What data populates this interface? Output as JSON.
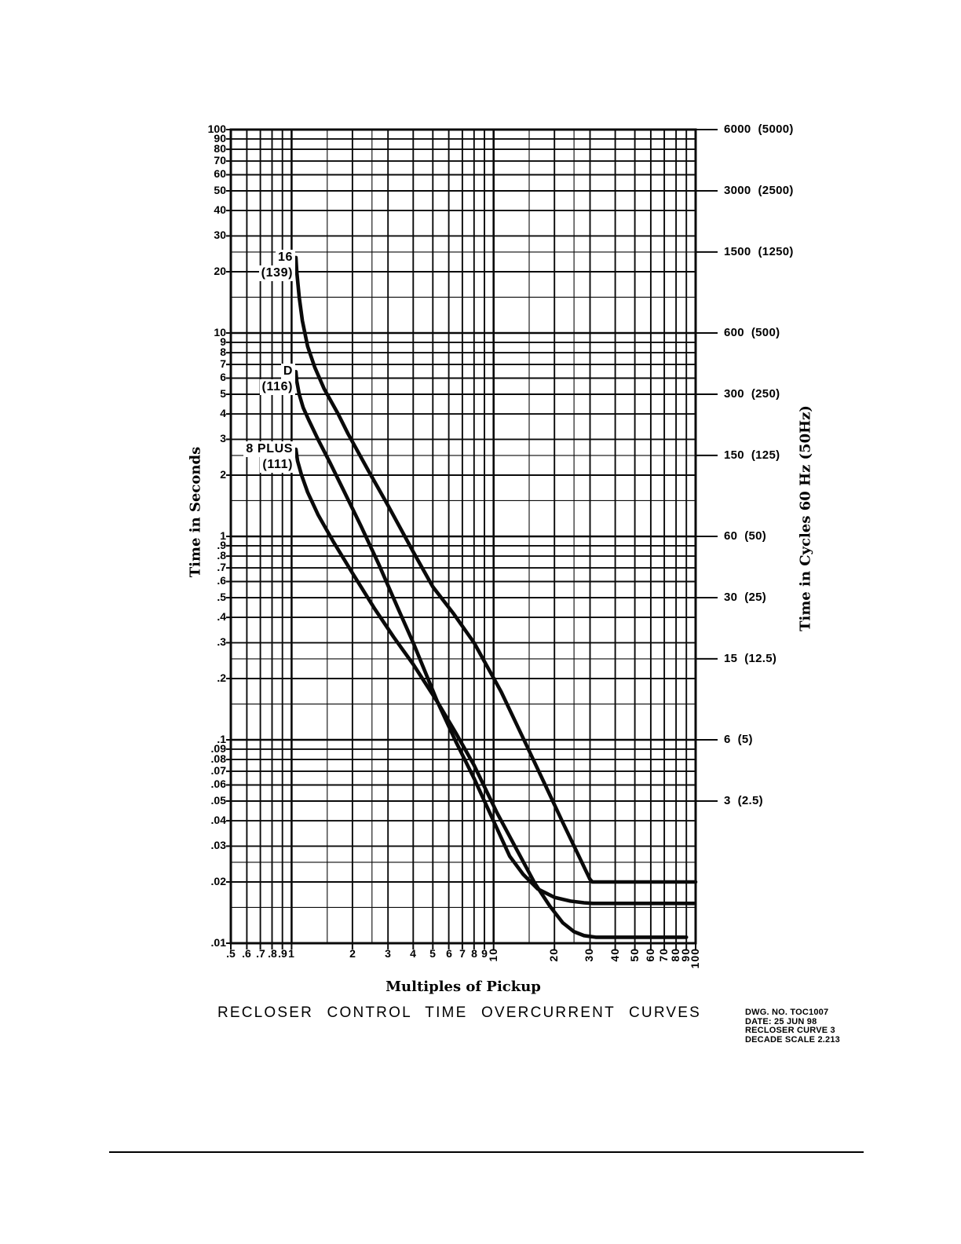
{
  "chart_data": {
    "type": "line",
    "title": "RECLOSER CONTROL TIME OVERCURRENT CURVES",
    "xlabel": "Multiples of Pickup",
    "ylabel_left": "Time in Seconds",
    "ylabel_right": "Time in Cycles 60 Hz (50Hz)",
    "x_scale": "log",
    "y_scale": "log",
    "xlim": [
      0.5,
      100
    ],
    "ylim": [
      0.01,
      100
    ],
    "grid": "log-log full grid",
    "x_ticks": [
      {
        "v": 0.5,
        "label": ".5",
        "rot": false
      },
      {
        "v": 0.6,
        "label": ".6",
        "rot": false
      },
      {
        "v": 0.7,
        "label": ".7",
        "rot": false
      },
      {
        "v": 0.8,
        "label": ".8",
        "rot": false
      },
      {
        "v": 0.9,
        "label": ".9",
        "rot": false
      },
      {
        "v": 1,
        "label": "1",
        "rot": false
      },
      {
        "v": 2,
        "label": "2",
        "rot": false
      },
      {
        "v": 3,
        "label": "3",
        "rot": false
      },
      {
        "v": 4,
        "label": "4",
        "rot": false
      },
      {
        "v": 5,
        "label": "5",
        "rot": false
      },
      {
        "v": 6,
        "label": "6",
        "rot": false
      },
      {
        "v": 7,
        "label": "7",
        "rot": false
      },
      {
        "v": 8,
        "label": "8",
        "rot": false
      },
      {
        "v": 9,
        "label": "9",
        "rot": false
      },
      {
        "v": 10,
        "label": "10",
        "rot": true
      },
      {
        "v": 20,
        "label": "20",
        "rot": true
      },
      {
        "v": 30,
        "label": "30",
        "rot": true
      },
      {
        "v": 40,
        "label": "40",
        "rot": true
      },
      {
        "v": 50,
        "label": "50",
        "rot": true
      },
      {
        "v": 60,
        "label": "60",
        "rot": true
      },
      {
        "v": 70,
        "label": "70",
        "rot": true
      },
      {
        "v": 80,
        "label": "80",
        "rot": true
      },
      {
        "v": 90,
        "label": "90",
        "rot": true
      },
      {
        "v": 100,
        "label": "100",
        "rot": true
      }
    ],
    "x_minor_gridlines": [
      1.5,
      2.5,
      15,
      25
    ],
    "y_ticks": [
      {
        "v": 100,
        "label": "100"
      },
      {
        "v": 90,
        "label": "90"
      },
      {
        "v": 80,
        "label": "80"
      },
      {
        "v": 70,
        "label": "70"
      },
      {
        "v": 60,
        "label": "60"
      },
      {
        "v": 50,
        "label": "50"
      },
      {
        "v": 40,
        "label": "40"
      },
      {
        "v": 30,
        "label": "30"
      },
      {
        "v": 20,
        "label": "20"
      },
      {
        "v": 10,
        "label": "10"
      },
      {
        "v": 9,
        "label": "9"
      },
      {
        "v": 8,
        "label": "8"
      },
      {
        "v": 7,
        "label": "7"
      },
      {
        "v": 6,
        "label": "6"
      },
      {
        "v": 5,
        "label": "5"
      },
      {
        "v": 4,
        "label": "4"
      },
      {
        "v": 3,
        "label": "3"
      },
      {
        "v": 2,
        "label": "2"
      },
      {
        "v": 1,
        "label": "1"
      },
      {
        "v": 0.9,
        "label": ".9"
      },
      {
        "v": 0.8,
        "label": ".8"
      },
      {
        "v": 0.7,
        "label": ".7"
      },
      {
        "v": 0.6,
        "label": ".6"
      },
      {
        "v": 0.5,
        "label": ".5"
      },
      {
        "v": 0.4,
        "label": ".4"
      },
      {
        "v": 0.3,
        "label": ".3"
      },
      {
        "v": 0.2,
        "label": ".2"
      },
      {
        "v": 0.1,
        "label": ".1"
      },
      {
        "v": 0.09,
        "label": ".09"
      },
      {
        "v": 0.08,
        "label": ".08"
      },
      {
        "v": 0.07,
        "label": ".07"
      },
      {
        "v": 0.06,
        "label": ".06"
      },
      {
        "v": 0.05,
        "label": ".05"
      },
      {
        "v": 0.04,
        "label": ".04"
      },
      {
        "v": 0.03,
        "label": ".03"
      },
      {
        "v": 0.02,
        "label": ".02"
      },
      {
        "v": 0.01,
        "label": ".01"
      }
    ],
    "y_minor_gridlines": [
      25,
      15,
      2.5,
      1.5,
      0.25,
      0.15,
      0.025,
      0.015
    ],
    "x_decade_gridlines": [
      1,
      10
    ],
    "y_decade_gridlines": [
      10,
      1,
      0.1
    ],
    "right_axis_ticks": [
      {
        "seconds": 100,
        "label": "6000  (5000)"
      },
      {
        "seconds": 50,
        "label": "3000  (2500)"
      },
      {
        "seconds": 25,
        "label": "1500  (1250)"
      },
      {
        "seconds": 10,
        "label": "600  (500)"
      },
      {
        "seconds": 5,
        "label": "300  (250)"
      },
      {
        "seconds": 2.5,
        "label": "150  (125)"
      },
      {
        "seconds": 1,
        "label": "60  (50)"
      },
      {
        "seconds": 0.5,
        "label": "30  (25)"
      },
      {
        "seconds": 0.25,
        "label": "15  (12.5)"
      },
      {
        "seconds": 0.1,
        "label": "6  (5)"
      },
      {
        "seconds": 0.05,
        "label": "3  (2.5)"
      }
    ],
    "series": [
      {
        "name": "16",
        "label_line1": "16",
        "label_line2": "(139)",
        "points": [
          [
            1.05,
            23.5
          ],
          [
            1.06,
            20
          ],
          [
            1.09,
            15
          ],
          [
            1.13,
            11.5
          ],
          [
            1.2,
            8.6
          ],
          [
            1.3,
            6.8
          ],
          [
            1.45,
            5.3
          ],
          [
            1.7,
            4.0
          ],
          [
            1.9,
            3.2
          ],
          [
            2.4,
            2.1
          ],
          [
            3,
            1.42
          ],
          [
            4,
            0.84
          ],
          [
            5,
            0.565
          ],
          [
            6.3,
            0.42
          ],
          [
            8,
            0.3
          ],
          [
            10.9,
            0.172
          ],
          [
            14,
            0.102
          ],
          [
            18,
            0.06
          ],
          [
            22,
            0.0392
          ],
          [
            26,
            0.0277
          ],
          [
            30,
            0.0206
          ],
          [
            30.8,
            0.02
          ],
          [
            100,
            0.02
          ]
        ]
      },
      {
        "name": "D",
        "label_line1": "D",
        "label_line2": "(116)",
        "points": [
          [
            1.05,
            6.45
          ],
          [
            1.06,
            5.8
          ],
          [
            1.09,
            5.0
          ],
          [
            1.14,
            4.3
          ],
          [
            1.22,
            3.7
          ],
          [
            1.35,
            3.0
          ],
          [
            1.55,
            2.3
          ],
          [
            1.8,
            1.7
          ],
          [
            2.2,
            1.13
          ],
          [
            2.7,
            0.73
          ],
          [
            3.37,
            0.44
          ],
          [
            4,
            0.3
          ],
          [
            5.28,
            0.153
          ],
          [
            6.5,
            0.098
          ],
          [
            8,
            0.0646
          ],
          [
            10,
            0.0398
          ],
          [
            12,
            0.0268
          ],
          [
            14,
            0.0218
          ],
          [
            16.5,
            0.0185
          ],
          [
            20,
            0.0168
          ],
          [
            24,
            0.0161
          ],
          [
            28,
            0.0158
          ],
          [
            31,
            0.0157
          ],
          [
            98,
            0.0157
          ]
        ]
      },
      {
        "name": "8 PLUS",
        "label_line1": "8 PLUS",
        "label_line2": "(111)",
        "points": [
          [
            1.05,
            2.68
          ],
          [
            1.07,
            2.35
          ],
          [
            1.12,
            2.0
          ],
          [
            1.2,
            1.65
          ],
          [
            1.35,
            1.28
          ],
          [
            1.6,
            0.95
          ],
          [
            2,
            0.66
          ],
          [
            2.58,
            0.44
          ],
          [
            3.2,
            0.32
          ],
          [
            4,
            0.235
          ],
          [
            5.28,
            0.153
          ],
          [
            6.5,
            0.108
          ],
          [
            8,
            0.075
          ],
          [
            10.4,
            0.0437
          ],
          [
            13,
            0.0289
          ],
          [
            16,
            0.0197
          ],
          [
            19,
            0.0152
          ],
          [
            22,
            0.0126
          ],
          [
            25,
            0.0114
          ],
          [
            28,
            0.0109
          ],
          [
            32,
            0.0107
          ],
          [
            90,
            0.0107
          ]
        ]
      }
    ]
  },
  "footer_block": {
    "line1": "DWG. NO. TOC1007",
    "line2": "DATE: 25 JUN 98",
    "line3": "RECLOSER CURVE 3",
    "line4": "DECADE SCALE 2.213"
  }
}
